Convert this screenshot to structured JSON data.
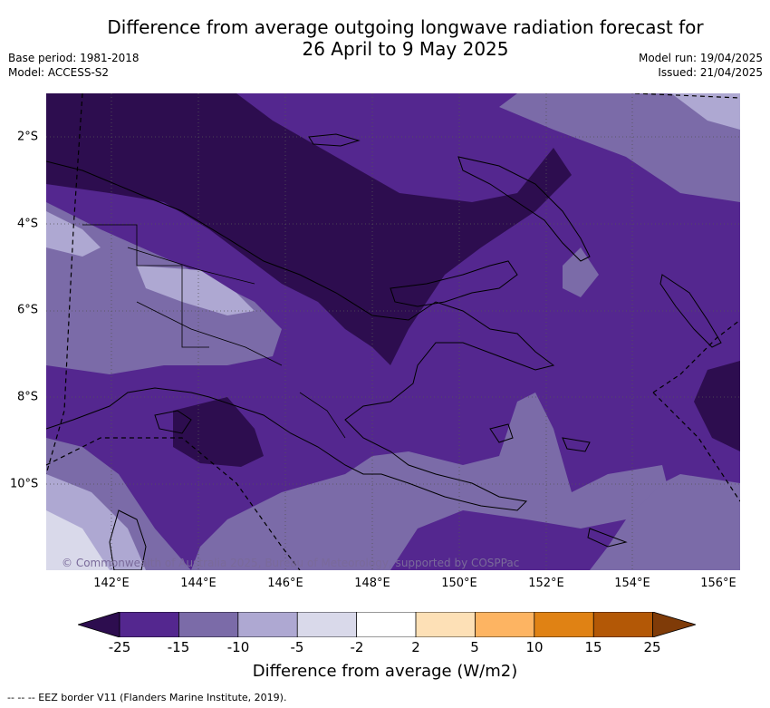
{
  "title_line1": "Difference from average outgoing longwave radiation forecast for",
  "title_line2": "26 April to 9 May 2025",
  "base_period": "Base period: 1981-2018",
  "model": "Model: ACCESS-S2",
  "model_run": "Model run: 19/04/2025",
  "issued": "Issued: 21/04/2025",
  "copyright": "© Commonwealth of Australia 2025, Bureau of Meteorology, supported by COSPPac",
  "x_ticks": [
    "142°E",
    "144°E",
    "146°E",
    "148°E",
    "150°E",
    "152°E",
    "154°E",
    "156°E"
  ],
  "y_ticks": [
    "2°S",
    "4°S",
    "6°S",
    "8°S",
    "10°S"
  ],
  "colorbar": {
    "labels": [
      "-25",
      "-15",
      "-10",
      "-5",
      "-2",
      "2",
      "5",
      "10",
      "15",
      "25"
    ],
    "colors": {
      "lt_-25": "#2d0d4f",
      "-25_-15": "#54278f",
      "-15_-10": "#7b6ba8",
      "-10_-5": "#aea8d2",
      "-5_-2": "#d9d9ea",
      "-2_2": "#ffffff",
      "2_5": "#fde0b6",
      "5_10": "#fdb462",
      "10_15": "#e08214",
      "15_25": "#b35806",
      "gt_25": "#7f3b08"
    },
    "title": "Difference from average (W/m2)"
  },
  "footer": "--  --  -- EEZ border V11 (Flanders Marine Institute, 2019).",
  "map": {
    "lon_range": [
      140.6,
      156.6
    ],
    "lat_range": [
      -12.0,
      -1.0
    ],
    "projection": "Plate Carrée",
    "region": "Papua New Guinea",
    "gridlines": "dotted"
  }
}
